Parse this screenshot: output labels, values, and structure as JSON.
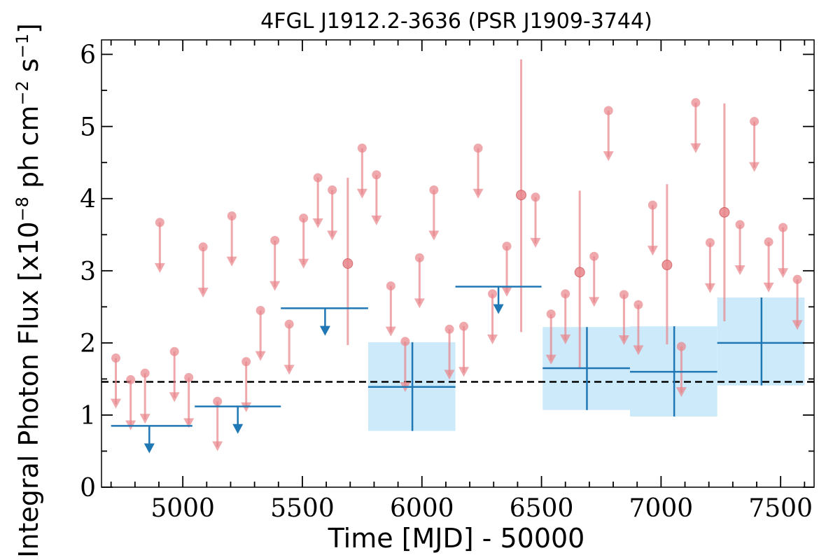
{
  "chart_data": {
    "type": "scatter",
    "title": "4FGL J1912.2-3636 (PSR J1909-3744)",
    "xlabel": "Time [MJD] - 50000",
    "ylabel_parts": [
      "Integral Photon Flux [x10",
      "−8",
      " ph cm",
      "−2",
      " s",
      "−1",
      "]"
    ],
    "xlim": [
      4660,
      7640
    ],
    "ylim": [
      0,
      6.2
    ],
    "xticks": [
      5000,
      5500,
      6000,
      6500,
      7000,
      7500
    ],
    "xtick_labels": [
      "5000",
      "5500",
      "6000",
      "6500",
      "7000",
      "7500"
    ],
    "yticks": [
      0,
      1,
      2,
      3,
      4,
      5,
      6
    ],
    "ytick_labels": [
      "0",
      "1",
      "2",
      "3",
      "4",
      "5",
      "6"
    ],
    "reference_line": 1.46,
    "colors": {
      "short_bins": "#e8858a",
      "long_bins": "#1f77b4",
      "error_band": "#cdeafb",
      "reference": "#000000"
    },
    "series": [
      {
        "kind": "short_bins_upper_limits",
        "points": [
          {
            "x": 4720,
            "y": 1.79
          },
          {
            "x": 4782,
            "y": 1.49
          },
          {
            "x": 4842,
            "y": 1.58
          },
          {
            "x": 4904,
            "y": 3.67
          },
          {
            "x": 4965,
            "y": 1.88
          },
          {
            "x": 5025,
            "y": 1.52
          },
          {
            "x": 5085,
            "y": 3.33
          },
          {
            "x": 5145,
            "y": 1.19
          },
          {
            "x": 5205,
            "y": 3.76
          },
          {
            "x": 5265,
            "y": 1.74
          },
          {
            "x": 5325,
            "y": 2.45
          },
          {
            "x": 5385,
            "y": 3.42
          },
          {
            "x": 5445,
            "y": 2.26
          },
          {
            "x": 5505,
            "y": 3.73
          },
          {
            "x": 5565,
            "y": 4.29
          },
          {
            "x": 5625,
            "y": 4.12
          },
          {
            "x": 5750,
            "y": 4.7
          },
          {
            "x": 5810,
            "y": 4.33
          },
          {
            "x": 5870,
            "y": 2.79
          },
          {
            "x": 5930,
            "y": 2.02
          },
          {
            "x": 5990,
            "y": 3.18
          },
          {
            "x": 6050,
            "y": 4.12
          },
          {
            "x": 6115,
            "y": 2.19
          },
          {
            "x": 6175,
            "y": 2.23
          },
          {
            "x": 6235,
            "y": 4.7
          },
          {
            "x": 6295,
            "y": 2.68
          },
          {
            "x": 6355,
            "y": 3.34
          },
          {
            "x": 6475,
            "y": 4.02
          },
          {
            "x": 6540,
            "y": 2.4
          },
          {
            "x": 6600,
            "y": 2.68
          },
          {
            "x": 6720,
            "y": 3.2
          },
          {
            "x": 6780,
            "y": 5.22
          },
          {
            "x": 6845,
            "y": 2.67
          },
          {
            "x": 6905,
            "y": 2.53
          },
          {
            "x": 6965,
            "y": 3.91
          },
          {
            "x": 7085,
            "y": 1.95
          },
          {
            "x": 7145,
            "y": 5.33
          },
          {
            "x": 7205,
            "y": 3.39
          },
          {
            "x": 7330,
            "y": 3.64
          },
          {
            "x": 7390,
            "y": 5.07
          },
          {
            "x": 7450,
            "y": 3.4
          },
          {
            "x": 7510,
            "y": 3.6
          },
          {
            "x": 7570,
            "y": 2.88
          }
        ]
      },
      {
        "kind": "short_bins_detections",
        "points": [
          {
            "x": 5690,
            "y": 3.1,
            "ylo": 1.97,
            "yhi": 4.29
          },
          {
            "x": 6415,
            "y": 4.05,
            "ylo": 2.15,
            "yhi": 5.93
          },
          {
            "x": 6660,
            "y": 2.98,
            "ylo": 1.65,
            "yhi": 4.11
          },
          {
            "x": 7025,
            "y": 3.08,
            "ylo": 1.98,
            "yhi": 4.2
          },
          {
            "x": 7265,
            "y": 3.81,
            "ylo": 2.3,
            "yhi": 5.32
          }
        ]
      },
      {
        "kind": "long_bins_upper_limits",
        "points": [
          {
            "x0": 4700,
            "x1": 5040,
            "y": 0.85,
            "xa": 4860
          },
          {
            "x0": 5050,
            "x1": 5410,
            "y": 1.12,
            "xa": 5230
          },
          {
            "x0": 5410,
            "x1": 5775,
            "y": 2.48,
            "xa": 5595
          },
          {
            "x0": 6140,
            "x1": 6500,
            "y": 2.78,
            "xa": 6320
          }
        ]
      },
      {
        "kind": "long_bins_detections",
        "points": [
          {
            "x0": 5775,
            "x1": 6140,
            "xc": 5960,
            "y": 1.39,
            "ylo": 0.78,
            "yhi": 2.01
          },
          {
            "x0": 6505,
            "x1": 6870,
            "xc": 6690,
            "y": 1.65,
            "ylo": 1.07,
            "yhi": 2.22
          },
          {
            "x0": 6870,
            "x1": 7235,
            "xc": 7055,
            "y": 1.6,
            "ylo": 0.98,
            "yhi": 2.23
          },
          {
            "x0": 7235,
            "x1": 7600,
            "xc": 7420,
            "y": 2.0,
            "ylo": 1.41,
            "yhi": 2.63
          }
        ]
      }
    ]
  }
}
